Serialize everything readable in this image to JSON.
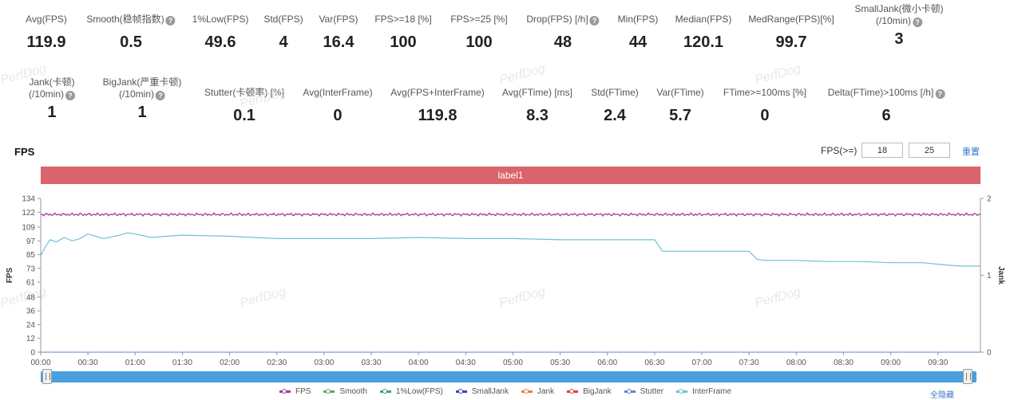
{
  "metrics_row1": [
    {
      "label": "Avg(FPS)",
      "value": "119.9",
      "help": false
    },
    {
      "label": "Smooth(稳帧指数)",
      "value": "0.5",
      "help": true
    },
    {
      "label": "1%Low(FPS)",
      "value": "49.6",
      "help": false
    },
    {
      "label": "Std(FPS)",
      "value": "4",
      "help": false
    },
    {
      "label": "Var(FPS)",
      "value": "16.4",
      "help": false
    },
    {
      "label": "FPS>=18 [%]",
      "value": "100",
      "help": false
    },
    {
      "label": "FPS>=25 [%]",
      "value": "100",
      "help": false
    },
    {
      "label": "Drop(FPS) [/h]",
      "value": "48",
      "help": true
    },
    {
      "label": "Min(FPS)",
      "value": "44",
      "help": false
    },
    {
      "label": "Median(FPS)",
      "value": "120.1",
      "help": false
    },
    {
      "label": "MedRange(FPS)[%]",
      "value": "99.7",
      "help": false
    },
    {
      "label": "SmallJank(微小卡顿)",
      "label2": "(/10min)",
      "value": "3",
      "help": true
    }
  ],
  "metrics_row2": [
    {
      "label": "Jank(卡顿)",
      "label2": "(/10min)",
      "value": "1",
      "help": true
    },
    {
      "label": "BigJank(严重卡顿)",
      "label2": "(/10min)",
      "value": "1",
      "help": true
    },
    {
      "label": "Stutter(卡顿率) [%]",
      "value": "0.1",
      "help": false
    },
    {
      "label": "Avg(InterFrame)",
      "value": "0",
      "help": false
    },
    {
      "label": "Avg(FPS+InterFrame)",
      "value": "119.8",
      "help": false
    },
    {
      "label": "Avg(FTime) [ms]",
      "value": "8.3",
      "help": false
    },
    {
      "label": "Std(FTime)",
      "value": "2.4",
      "help": false
    },
    {
      "label": "Var(FTime)",
      "value": "5.7",
      "help": false
    },
    {
      "label": "FTime>=100ms [%]",
      "value": "0",
      "help": false
    },
    {
      "label": "Delta(FTime)>100ms [/h]",
      "value": "6",
      "help": true
    }
  ],
  "watermark": "PerfDog",
  "chart_section": {
    "title": "FPS",
    "threshold_label": "FPS(>=)",
    "threshold_1": "18",
    "threshold_2": "25",
    "reset_label": "重置",
    "label_bar": "label1",
    "hide_all_label": "全隐藏"
  },
  "chart_data": {
    "type": "line",
    "title": "",
    "ylabel": "FPS",
    "y2label": "Jank",
    "ylim": [
      0,
      134
    ],
    "y_ticks": [
      0,
      12,
      24,
      36,
      48,
      61,
      73,
      85,
      97,
      109,
      122,
      134
    ],
    "y2lim": [
      0,
      2
    ],
    "y2_ticks": [
      0,
      1,
      2
    ],
    "x_ticks": [
      "00:00",
      "00:30",
      "01:00",
      "01:30",
      "02:00",
      "02:30",
      "03:00",
      "03:30",
      "04:00",
      "04:30",
      "05:00",
      "05:30",
      "06:00",
      "06:30",
      "07:00",
      "07:30",
      "08:00",
      "08:30",
      "09:00",
      "09:30"
    ],
    "xlim_seconds": [
      0,
      597
    ],
    "series": [
      {
        "name": "FPS",
        "color": "#a23ba0",
        "x": [
          0,
          30,
          60,
          90,
          120,
          150,
          180,
          210,
          240,
          270,
          300,
          330,
          360,
          390,
          420,
          450,
          480,
          510,
          540,
          570,
          597
        ],
        "values": [
          120,
          120,
          120,
          120,
          120,
          120,
          120,
          120,
          120,
          120,
          120,
          120,
          120,
          120,
          120,
          120,
          120,
          120,
          120,
          120,
          120
        ]
      },
      {
        "name": "Smooth",
        "color": "#5aa95d",
        "x": [
          0,
          597
        ],
        "values": [
          0,
          0
        ]
      },
      {
        "name": "1%Low(FPS)",
        "color": "#3e9e99",
        "x": [
          0,
          597
        ],
        "values": [
          0,
          0
        ]
      },
      {
        "name": "SmallJank",
        "color": "#3947a8",
        "x": [
          0,
          597
        ],
        "values": [
          0,
          0
        ]
      },
      {
        "name": "Jank",
        "color": "#e9833a",
        "x": [
          0,
          597
        ],
        "values": [
          0,
          0
        ]
      },
      {
        "name": "BigJank",
        "color": "#d9443c",
        "x": [
          0,
          597
        ],
        "values": [
          0,
          0
        ]
      },
      {
        "name": "Stutter",
        "color": "#5b86c9",
        "x": [
          0,
          597
        ],
        "values": [
          0,
          0
        ]
      },
      {
        "name": "InterFrame",
        "color": "#6cc3d3",
        "x": [
          0,
          3,
          6,
          10,
          15,
          20,
          25,
          30,
          40,
          50,
          55,
          60,
          70,
          80,
          90,
          120,
          150,
          180,
          210,
          240,
          270,
          300,
          330,
          360,
          390,
          395,
          400,
          420,
          450,
          455,
          460,
          480,
          500,
          520,
          540,
          560,
          575,
          585,
          597
        ],
        "values": [
          84,
          92,
          98,
          96,
          100,
          97,
          99,
          103,
          99,
          102,
          104,
          103,
          100,
          101,
          102,
          101,
          99,
          99,
          99,
          100,
          99,
          99,
          98,
          98,
          98,
          88,
          88,
          88,
          88,
          81,
          80,
          80,
          79,
          79,
          78,
          78,
          76,
          75,
          75
        ]
      }
    ],
    "legend_position": "bottom"
  }
}
